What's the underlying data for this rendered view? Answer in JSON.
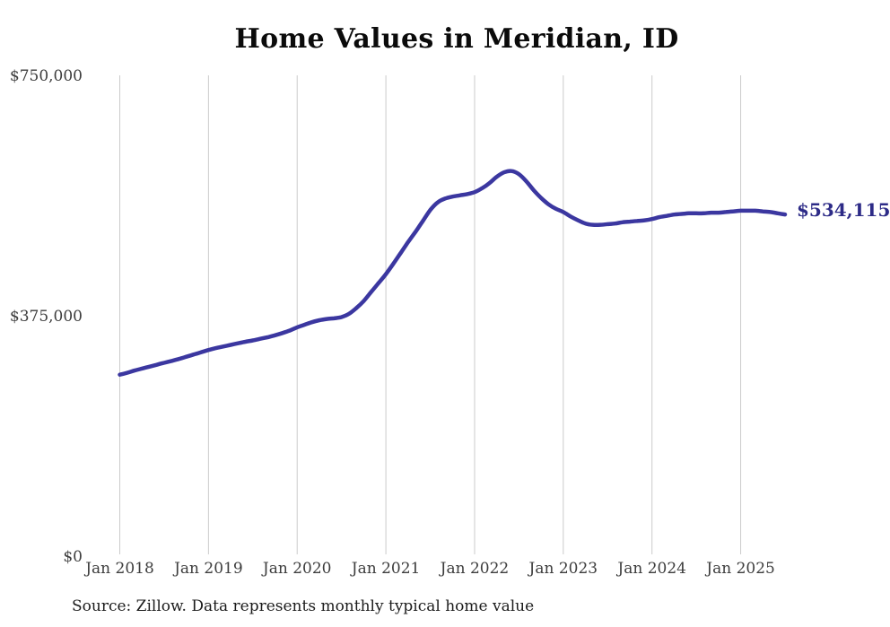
{
  "title": "Home Values in Meridian, ID",
  "end_label": "$534,115",
  "source_note": "Source: Zillow. Data represents monthly typical home value",
  "y_axis": {
    "tick_labels": [
      "$750,000",
      "$375,000",
      "$0"
    ]
  },
  "x_axis": {
    "tick_labels": [
      "Jan 2018",
      "Jan 2019",
      "Jan 2020",
      "Jan 2021",
      "Jan 2022",
      "Jan 2023",
      "Jan 2024",
      "Jan 2025"
    ]
  },
  "colors": {
    "line": "#3b37a0",
    "end_label": "#2d2b87",
    "gridline": "#cbcbcb",
    "axis_text": "#3d3d3d",
    "title_text": "#0b0b0b",
    "source_text": "#1c1c1c",
    "background": "#ffffff"
  },
  "chart_data": {
    "type": "line",
    "title": "Home Values in Meridian, ID",
    "series_name": "Monthly typical home value",
    "source": "Source: Zillow. Data represents monthly typical home value",
    "xlabel": "",
    "ylabel": "",
    "ylim": [
      0,
      750000
    ],
    "yticks": [
      750000,
      375000,
      0
    ],
    "ytick_labels": [
      "$750,000",
      "$375,000",
      "$0"
    ],
    "xticks": [
      "2018-01",
      "2019-01",
      "2020-01",
      "2021-01",
      "2022-01",
      "2023-01",
      "2024-01",
      "2025-01"
    ],
    "xtick_labels": [
      "Jan 2018",
      "Jan 2019",
      "Jan 2020",
      "Jan 2021",
      "Jan 2022",
      "Jan 2023",
      "Jan 2024",
      "Jan 2025"
    ],
    "grid": "vertical-only",
    "legend": "none",
    "final_value": 534115,
    "final_value_label": "$534,115",
    "x": [
      "2018-01",
      "2018-02",
      "2018-03",
      "2018-04",
      "2018-05",
      "2018-06",
      "2018-07",
      "2018-08",
      "2018-09",
      "2018-10",
      "2018-11",
      "2018-12",
      "2019-01",
      "2019-02",
      "2019-03",
      "2019-04",
      "2019-05",
      "2019-06",
      "2019-07",
      "2019-08",
      "2019-09",
      "2019-10",
      "2019-11",
      "2019-12",
      "2020-01",
      "2020-02",
      "2020-03",
      "2020-04",
      "2020-05",
      "2020-06",
      "2020-07",
      "2020-08",
      "2020-09",
      "2020-10",
      "2020-11",
      "2020-12",
      "2021-01",
      "2021-02",
      "2021-03",
      "2021-04",
      "2021-05",
      "2021-06",
      "2021-07",
      "2021-08",
      "2021-09",
      "2021-10",
      "2021-11",
      "2021-12",
      "2022-01",
      "2022-02",
      "2022-03",
      "2022-04",
      "2022-05",
      "2022-06",
      "2022-07",
      "2022-08",
      "2022-09",
      "2022-10",
      "2022-11",
      "2022-12",
      "2023-01",
      "2023-02",
      "2023-03",
      "2023-04",
      "2023-05",
      "2023-06",
      "2023-07",
      "2023-08",
      "2023-09",
      "2023-10",
      "2023-11",
      "2023-12",
      "2024-01",
      "2024-02",
      "2024-03",
      "2024-04",
      "2024-05",
      "2024-06",
      "2024-07",
      "2024-08",
      "2024-09",
      "2024-10",
      "2024-11",
      "2024-12",
      "2025-01",
      "2025-02",
      "2025-03",
      "2025-04",
      "2025-05",
      "2025-06",
      "2025-07"
    ],
    "values": [
      284000,
      287000,
      290500,
      293500,
      296500,
      299500,
      302500,
      305500,
      308500,
      312000,
      315500,
      319000,
      322500,
      325500,
      328000,
      330500,
      333000,
      335500,
      337500,
      340000,
      342500,
      345500,
      349000,
      353000,
      358000,
      362000,
      366000,
      369000,
      371000,
      372000,
      374000,
      379000,
      388000,
      399000,
      413000,
      427000,
      441000,
      457000,
      474000,
      491000,
      507000,
      524000,
      541000,
      553000,
      559000,
      562000,
      564000,
      566000,
      569000,
      575000,
      583000,
      593000,
      600000,
      602000,
      597000,
      586000,
      572000,
      560000,
      550000,
      543000,
      538000,
      531000,
      525000,
      520000,
      518000,
      518000,
      519000,
      520000,
      522000,
      523000,
      524000,
      525000,
      527000,
      530000,
      532000,
      534000,
      535000,
      536000,
      536000,
      536000,
      537000,
      537000,
      538000,
      539000,
      540000,
      540000,
      540000,
      539000,
      538000,
      536000,
      534115
    ]
  }
}
